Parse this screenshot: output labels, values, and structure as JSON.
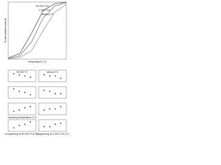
{
  "chart_data": [
    {
      "type": "line",
      "x_label": "Temperature (°C)",
      "y_label": "% intercalated material",
      "x": [
        0,
        20,
        40,
        60,
        80,
        100
      ],
      "xlim": [
        0,
        100
      ],
      "ylim": [
        0,
        100
      ],
      "series": [
        {
          "name": "50,000 TCA",
          "color": "#555555",
          "values": [
            2,
            10,
            45,
            85,
            97,
            100
          ]
        },
        {
          "name": "2,000 TCA",
          "color": "#777777",
          "values": [
            1,
            6,
            30,
            72,
            93,
            99
          ]
        },
        {
          "name": "Without TC",
          "color": "#999999",
          "values": [
            0,
            3,
            15,
            50,
            82,
            96
          ]
        }
      ]
    },
    {
      "type": "scatter",
      "title": "50,000 TC",
      "x": [
        20,
        40,
        60,
        80
      ],
      "values": [
        7,
        6,
        5,
        4
      ],
      "xlim": [
        0,
        100
      ],
      "ylim": [
        0,
        10
      ],
      "color": "#333333"
    },
    {
      "type": "scatter",
      "title": "without TC",
      "x": [
        20,
        40,
        60,
        80
      ],
      "values": [
        6,
        5,
        5,
        3
      ],
      "xlim": [
        0,
        100
      ],
      "ylim": [
        0,
        10
      ],
      "color": "#333333"
    },
    {
      "type": "scatter",
      "x": [
        20,
        40,
        60,
        80
      ],
      "values": [
        8,
        6,
        5,
        3
      ],
      "xlim": [
        0,
        100
      ],
      "ylim": [
        0,
        10
      ],
      "color": "#333333"
    },
    {
      "type": "scatter",
      "x": [
        20,
        40,
        60,
        80
      ],
      "values": [
        7,
        6,
        4,
        4
      ],
      "xlim": [
        0,
        100
      ],
      "ylim": [
        0,
        10
      ],
      "color": "#333333"
    },
    {
      "type": "scatter",
      "x_label": "Sampling temperature (°C)",
      "x": [
        20,
        40,
        60,
        80
      ],
      "values": [
        3,
        4,
        6,
        7
      ],
      "xlim": [
        0,
        100
      ],
      "ylim": [
        0,
        10
      ],
      "color": "#333333"
    },
    {
      "type": "scatter",
      "x": [
        20,
        40,
        60,
        80
      ],
      "values": [
        4,
        5,
        5,
        7
      ],
      "xlim": [
        0,
        100
      ],
      "ylim": [
        0,
        10
      ],
      "color": "#333333"
    },
    {
      "type": "scatter",
      "x_label": "Roughening at 50,000 TCA (°C)",
      "x": [
        20,
        40,
        60,
        80
      ],
      "values": [
        3,
        5,
        6,
        8
      ],
      "xlim": [
        0,
        100
      ],
      "ylim": [
        0,
        10
      ],
      "color": "#333333"
    },
    {
      "type": "scatter",
      "x_label": "Roughening at 2,000 TCA (°C)",
      "x": [
        20,
        40,
        60,
        80
      ],
      "values": [
        4,
        4,
        6,
        7
      ],
      "xlim": [
        0,
        100
      ],
      "ylim": [
        0,
        10
      ],
      "color": "#333333"
    }
  ]
}
